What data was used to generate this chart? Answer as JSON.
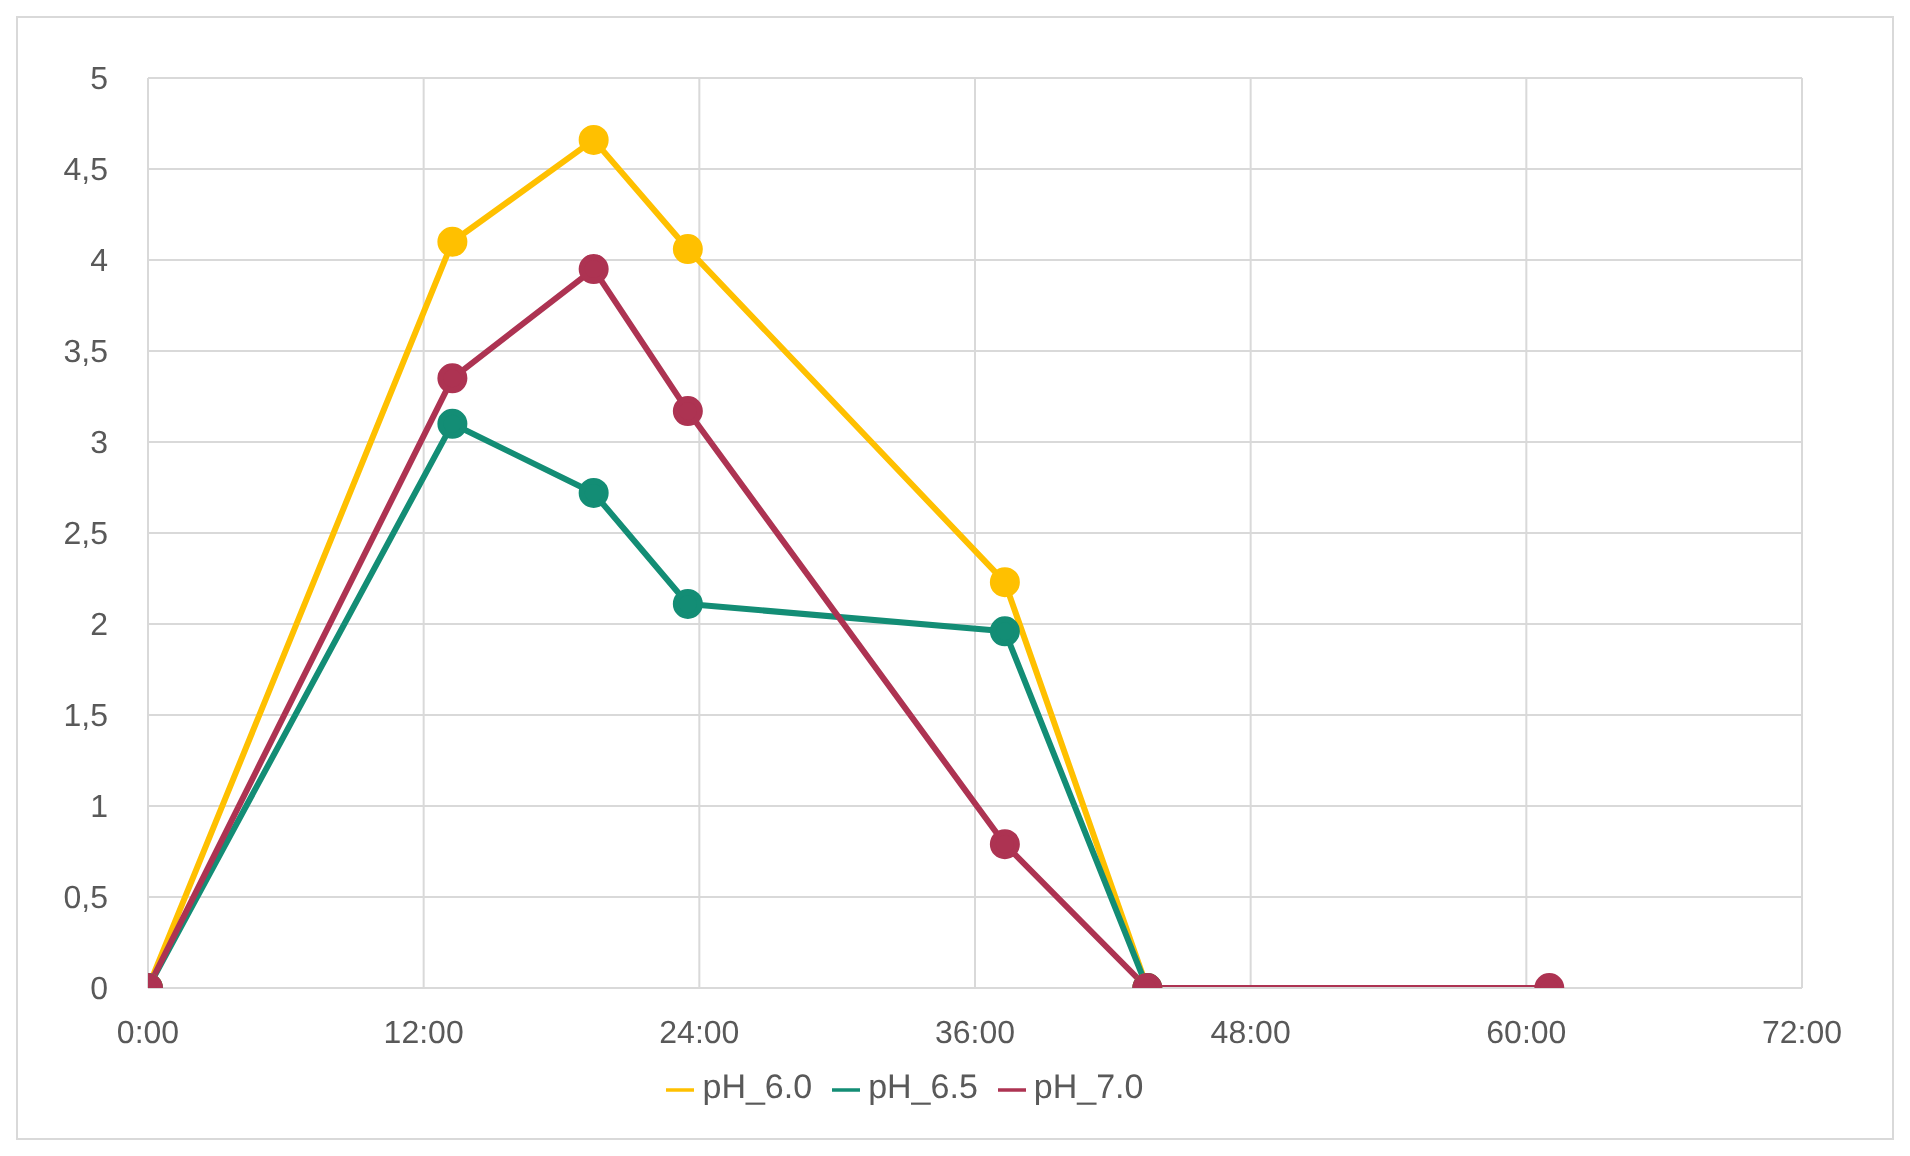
{
  "chart_data": {
    "type": "line",
    "x": [
      0,
      13.25,
      19.4,
      23.5,
      37.3,
      43.5,
      61
    ],
    "series": [
      {
        "name": "pH_6.0",
        "color": "#ffc000",
        "values": [
          0,
          4.1,
          4.66,
          4.06,
          2.23,
          0,
          null
        ]
      },
      {
        "name": "pH_6.5",
        "color": "#138d75",
        "values": [
          0,
          3.1,
          2.72,
          2.11,
          1.96,
          0,
          null
        ]
      },
      {
        "name": "pH_7.0",
        "color": "#ad3352",
        "values": [
          0,
          3.35,
          3.95,
          3.17,
          0.79,
          0,
          0
        ]
      }
    ],
    "xlim": [
      0,
      72
    ],
    "xticks": [
      {
        "value": 0,
        "label": "0:00"
      },
      {
        "value": 12,
        "label": "12:00"
      },
      {
        "value": 24,
        "label": "24:00"
      },
      {
        "value": 36,
        "label": "36:00"
      },
      {
        "value": 48,
        "label": "48:00"
      },
      {
        "value": 60,
        "label": "60:00"
      },
      {
        "value": 72,
        "label": "72:00"
      }
    ],
    "ylim": [
      0,
      5
    ],
    "yticks": [
      0,
      {
        "value": 0.5,
        "label": "0,5"
      },
      1,
      {
        "value": 1.5,
        "label": "1,5"
      },
      2,
      {
        "value": 2.5,
        "label": "2,5"
      },
      3,
      {
        "value": 3.5,
        "label": "3,5"
      },
      4,
      {
        "value": 4.5,
        "label": "4,5"
      },
      5
    ],
    "grid": true,
    "legend": "bottom",
    "marker": "circle",
    "line_style": "solid"
  }
}
